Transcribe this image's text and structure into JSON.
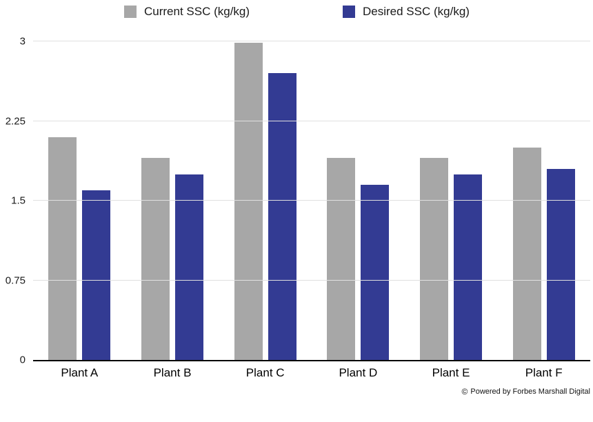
{
  "chart_data": {
    "type": "bar",
    "categories": [
      "Plant A",
      "Plant B",
      "Plant C",
      "Plant D",
      "Plant E",
      "Plant F"
    ],
    "series": [
      {
        "name": "Current SSC (kg/kg)",
        "color": "#a7a7a7",
        "values": [
          2.1,
          1.9,
          2.99,
          1.9,
          1.9,
          2.0
        ]
      },
      {
        "name": "Desired SSC (kg/kg)",
        "color": "#333b93",
        "values": [
          1.6,
          1.75,
          2.7,
          1.65,
          1.75,
          1.8
        ]
      }
    ],
    "title": "",
    "xlabel": "",
    "ylabel": "",
    "ylim": [
      0,
      3
    ],
    "yticks": [
      0,
      0.75,
      1.5,
      2.25,
      3
    ],
    "ytick_labels": [
      "0",
      "0.75",
      "1.5",
      "2.25",
      "3"
    ],
    "grid": true,
    "legend_position": "top",
    "gridline_color": "#e0e0e0",
    "baseline_color": "#000000"
  },
  "footer": {
    "copyright_symbol": "©",
    "attribution": "Powered by Forbes Marshall Digital"
  }
}
